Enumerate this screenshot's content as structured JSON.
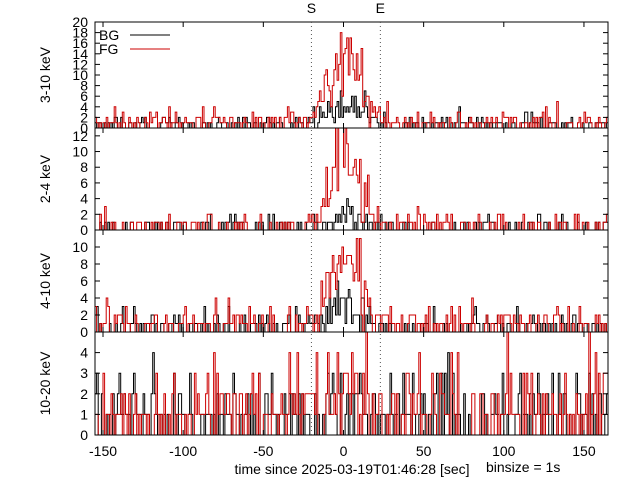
{
  "chart_data": {
    "type": "step",
    "xlabel": "time since 2025-03-19T01:46:28 [sec]",
    "binsize_label": "binsize = 1s",
    "xlim": [
      -155,
      165
    ],
    "xticks": [
      -150,
      -100,
      -50,
      0,
      50,
      100,
      150
    ],
    "markers": [
      {
        "label": "S",
        "x": -20
      },
      {
        "label": "E",
        "x": 23
      }
    ],
    "legend": {
      "placement": "top-left",
      "entries": [
        "BG",
        "FG"
      ]
    },
    "colors": {
      "BG": "#000000",
      "FG": "#cc0000",
      "markers": "#555555"
    },
    "panels": [
      {
        "ylabel": "3-10 keV",
        "ylim": [
          0,
          20
        ],
        "yticks": [
          0,
          2,
          4,
          6,
          8,
          10,
          12,
          14,
          16,
          18,
          20
        ],
        "series": [
          {
            "name": "BG",
            "peak": 6,
            "base": 0.7
          },
          {
            "name": "FG",
            "peak": 19,
            "base": 1.0
          }
        ]
      },
      {
        "ylabel": "2-4 keV",
        "ylim": [
          0,
          13
        ],
        "yticks": [
          0,
          2,
          4,
          6,
          8,
          10,
          12
        ],
        "series": [
          {
            "name": "BG",
            "peak": 2.5,
            "base": 0.35
          },
          {
            "name": "FG",
            "peak": 13,
            "base": 0.5
          }
        ]
      },
      {
        "ylabel": "4-10 keV",
        "ylim": [
          0,
          12
        ],
        "yticks": [
          0,
          2,
          4,
          6,
          8,
          10
        ],
        "series": [
          {
            "name": "BG",
            "peak": 4,
            "base": 0.6
          },
          {
            "name": "FG",
            "peak": 11,
            "base": 0.9
          }
        ]
      },
      {
        "ylabel": "10-20 keV",
        "ylim": [
          0,
          5
        ],
        "yticks": [
          0,
          1,
          2,
          3,
          4
        ],
        "series": [
          {
            "name": "BG",
            "peak": 4.5,
            "base": 0.9
          },
          {
            "name": "FG",
            "peak": 5,
            "base": 1.2
          }
        ]
      }
    ]
  }
}
